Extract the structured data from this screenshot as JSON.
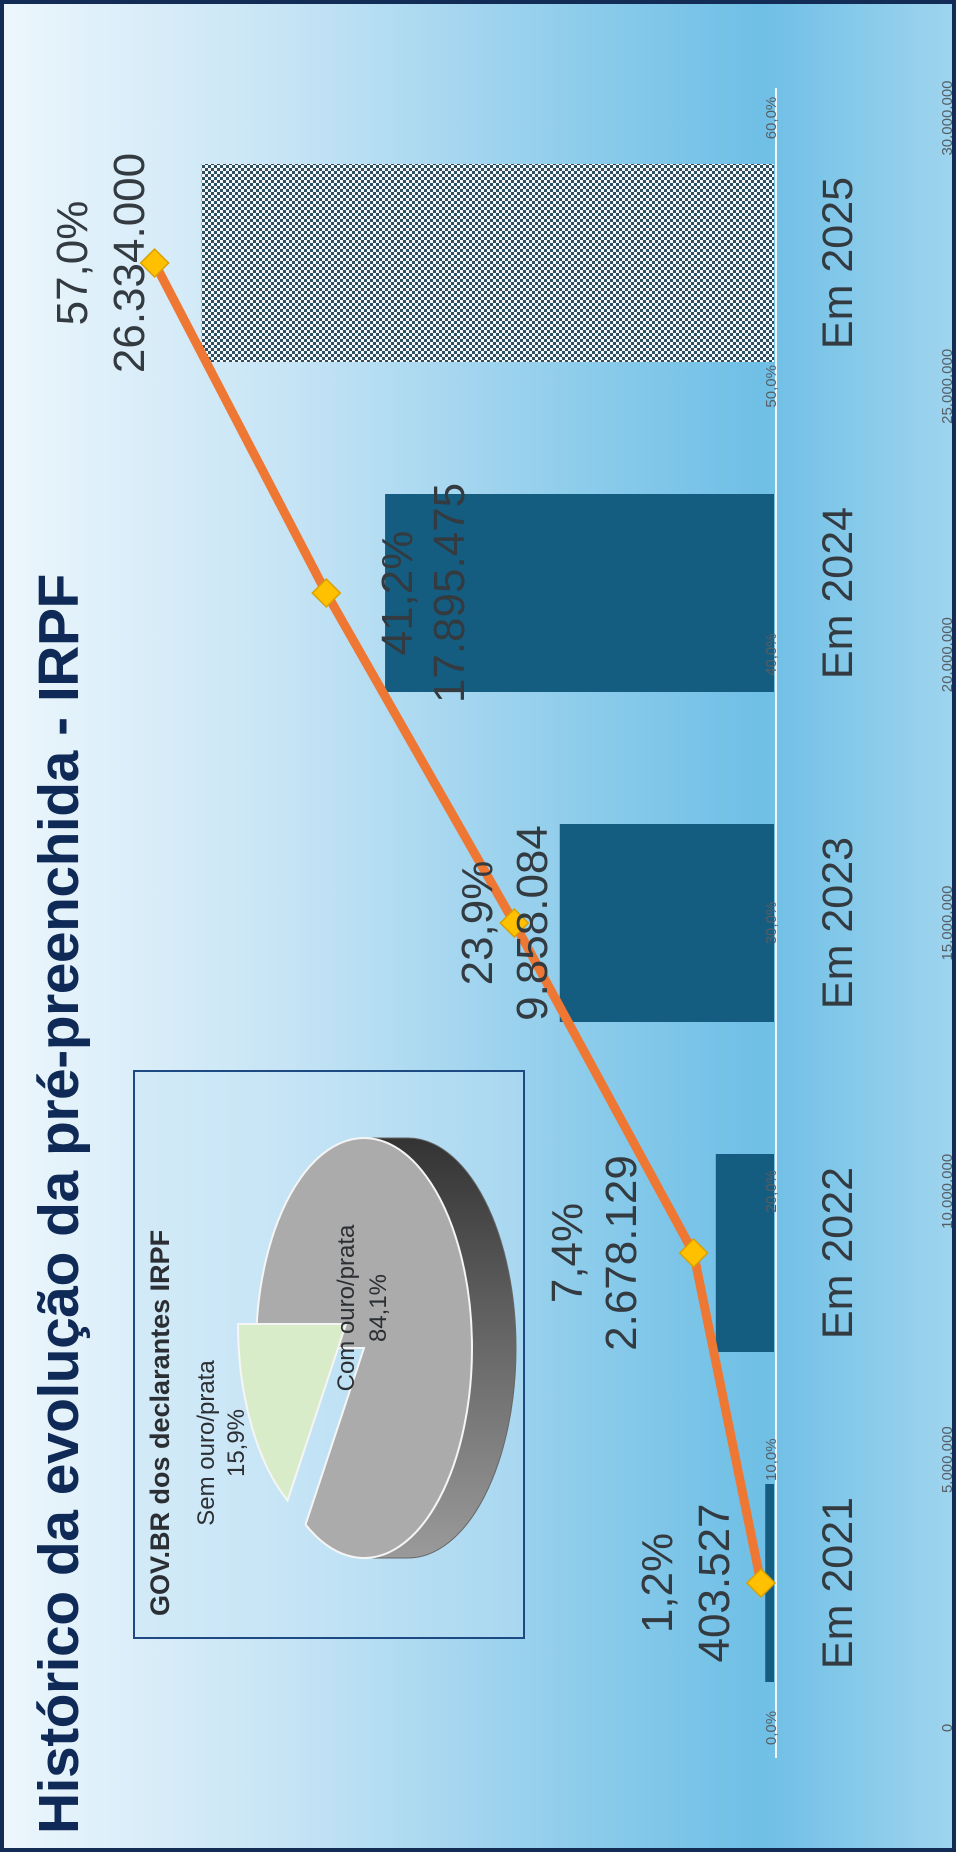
{
  "title": "Histórico da evolução da pré-preenchida - IRPF",
  "colors": {
    "bar": "#155d80",
    "line": "#ee7733",
    "marker": "#ffc000",
    "title": "#0f2a56"
  },
  "chart_data": [
    {
      "type": "bar",
      "categories": [
        "Em 2021",
        "Em 2022",
        "Em 2023",
        "Em 2024",
        "Em 2025"
      ],
      "series": [
        {
          "type": "bar",
          "axis": "left",
          "values": [
            403527,
            2678129,
            9858084,
            17895475,
            26334000
          ],
          "labels": [
            "403.527",
            "2.678.129",
            "9.858.084",
            "17.895.475",
            "26.334.000"
          ],
          "last_bar_pattern": "checkered"
        },
        {
          "type": "line",
          "axis": "right",
          "values": [
            1.2,
            7.4,
            23.9,
            41.2,
            57.0
          ],
          "labels": [
            "1,2%",
            "7,4%",
            "23,9%",
            "41,2%",
            "57,0%"
          ]
        }
      ],
      "left_axis": {
        "ylim": [
          0,
          30000000
        ],
        "ticks": [
          "0",
          "5.000.000",
          "10.000.000",
          "15.000.000",
          "20.000.000",
          "25.000.000",
          "30.000.000"
        ]
      },
      "right_axis": {
        "ylim": [
          0,
          60
        ],
        "ticks": [
          "0,0%",
          "10,0%",
          "20,0%",
          "30,0%",
          "40,0%",
          "50,0%",
          "60,0%"
        ]
      },
      "grid": false
    },
    {
      "type": "pie",
      "title": "GOV.BR dos declarantes IRPF",
      "slices": [
        {
          "label": "Com ouro/prata",
          "value": 84.1,
          "text": "84,1%"
        },
        {
          "label": "Sem ouro/prata",
          "value": 15.9,
          "text": "15,9%"
        }
      ]
    }
  ]
}
